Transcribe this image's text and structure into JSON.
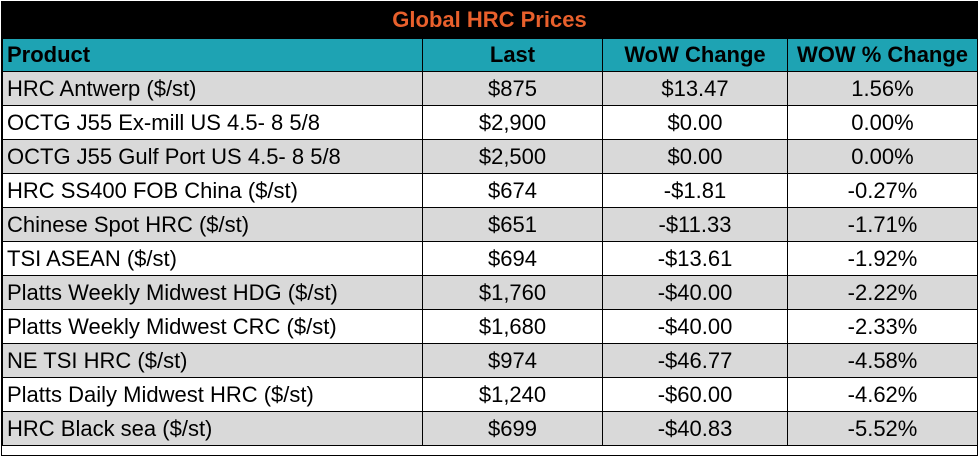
{
  "title": "Global HRC Prices",
  "colors": {
    "title_bg": "#000000",
    "title_text": "#e8602c",
    "header_bg": "#1ea3b3",
    "shaded_row": "#d9d9d9",
    "plain_row": "#ffffff"
  },
  "headers": {
    "product": "Product",
    "last": "Last",
    "wow_change": "WoW Change",
    "wow_pct_change": "WOW % Change"
  },
  "rows": [
    {
      "product": "HRC Antwerp ($/st)",
      "last": "$875",
      "wow_change": "$13.47",
      "wow_pct_change": "1.56%"
    },
    {
      "product": "OCTG J55 Ex-mill US 4.5- 8 5/8",
      "last": "$2,900",
      "wow_change": "$0.00",
      "wow_pct_change": "0.00%"
    },
    {
      "product": "OCTG J55 Gulf Port US 4.5- 8 5/8",
      "last": "$2,500",
      "wow_change": "$0.00",
      "wow_pct_change": "0.00%"
    },
    {
      "product": "HRC SS400 FOB China ($/st)",
      "last": "$674",
      "wow_change": "-$1.81",
      "wow_pct_change": "-0.27%"
    },
    {
      "product": "Chinese Spot HRC ($/st)",
      "last": "$651",
      "wow_change": "-$11.33",
      "wow_pct_change": "-1.71%"
    },
    {
      "product": "TSI ASEAN ($/st)",
      "last": "$694",
      "wow_change": "-$13.61",
      "wow_pct_change": "-1.92%"
    },
    {
      "product": "Platts Weekly Midwest HDG ($/st)",
      "last": "$1,760",
      "wow_change": "-$40.00",
      "wow_pct_change": "-2.22%"
    },
    {
      "product": "Platts Weekly Midwest CRC ($/st)",
      "last": "$1,680",
      "wow_change": "-$40.00",
      "wow_pct_change": "-2.33%"
    },
    {
      "product": "NE TSI HRC ($/st)",
      "last": "$974",
      "wow_change": "-$46.77",
      "wow_pct_change": "-4.58%"
    },
    {
      "product": "Platts Daily Midwest HRC ($/st)",
      "last": "$1,240",
      "wow_change": "-$60.00",
      "wow_pct_change": "-4.62%"
    },
    {
      "product": "HRC Black sea ($/st)",
      "last": "$699",
      "wow_change": "-$40.83",
      "wow_pct_change": "-5.52%"
    }
  ]
}
